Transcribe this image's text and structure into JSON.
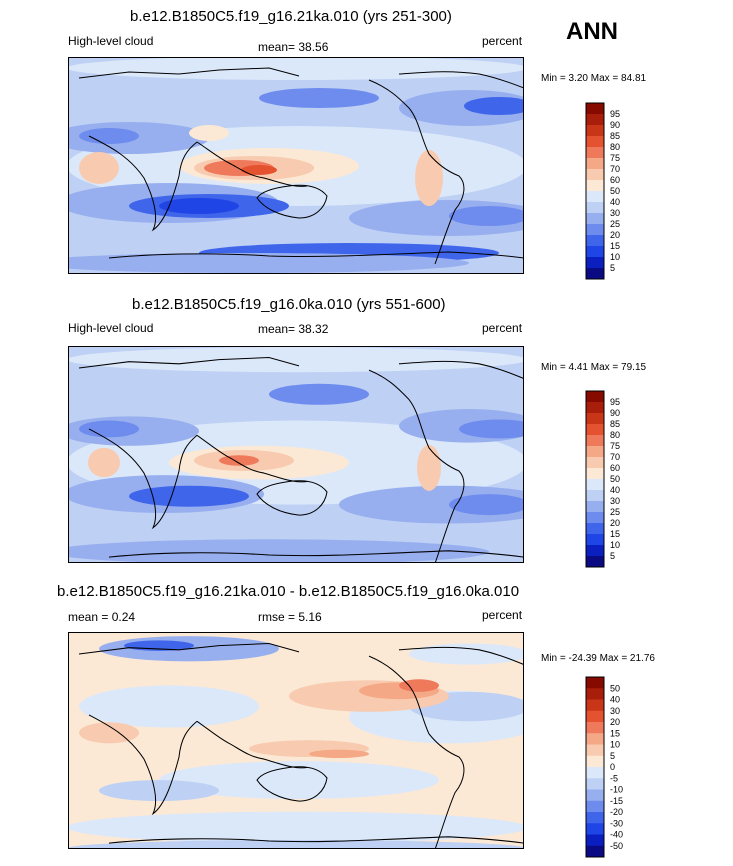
{
  "season": "ANN",
  "colors": {
    "p10": [
      "#0a0a82",
      "#0b1fc0",
      "#1f45e6",
      "#3f66ea",
      "#6e8cee",
      "#98afef",
      "#bed0f4",
      "#dbe8fa",
      "#fbe9d6",
      "#f8cbb0",
      "#f5a886",
      "#ef7a5b",
      "#e4522f",
      "#c93517",
      "#a81e0a",
      "#860a00"
    ],
    "diff": [
      "#0a0a82",
      "#0b1fc0",
      "#1f45e6",
      "#3f66ea",
      "#6e8cee",
      "#98afef",
      "#bed0f4",
      "#dbe8fa",
      "#fbe9d6",
      "#f8cbb0",
      "#f5a886",
      "#ef7a5b",
      "#e4522f",
      "#c93517",
      "#a81e0a",
      "#860a00"
    ]
  },
  "panels": [
    {
      "title": "b.e12.B1850C5.f19_g16.21ka.010 (yrs 251-300)",
      "left": "High-level cloud",
      "center": "mean=  38.56",
      "right": "percent",
      "minmax": "Min =   3.20 Max =  84.81"
    },
    {
      "title": "b.e12.B1850C5.f19_g16.0ka.010 (yrs 551-600)",
      "left": "High-level cloud",
      "center": "mean=  38.32",
      "right": "percent",
      "minmax": "Min =   4.41 Max =  79.15"
    },
    {
      "title": "b.e12.B1850C5.f19_g16.21ka.010 - b.e12.B1850C5.f19_g16.0ka.010",
      "left": "mean =   0.24",
      "center": "rmse =   5.16",
      "right": "percent",
      "minmax": "Min = -24.39 Max =  21.76"
    }
  ],
  "chart_data": [
    {
      "type": "heatmap",
      "title": "b.e12.B1850C5.f19_g16.21ka.010 (yrs 251-300)",
      "variable": "High-level cloud",
      "units": "percent",
      "mean": 38.56,
      "min": 3.2,
      "max": 84.81,
      "colorbar_levels": [
        "5",
        "10",
        "15",
        "20",
        "25",
        "30",
        "40",
        "50",
        "60",
        "70",
        "75",
        "80",
        "85",
        "90",
        "95"
      ]
    },
    {
      "type": "heatmap",
      "title": "b.e12.B1850C5.f19_g16.0ka.010 (yrs 551-600)",
      "variable": "High-level cloud",
      "units": "percent",
      "mean": 38.32,
      "min": 4.41,
      "max": 79.15,
      "colorbar_levels": [
        "5",
        "10",
        "15",
        "20",
        "25",
        "30",
        "40",
        "50",
        "60",
        "70",
        "75",
        "80",
        "85",
        "90",
        "95"
      ]
    },
    {
      "type": "heatmap",
      "title": "b.e12.B1850C5.f19_g16.21ka.010 - b.e12.B1850C5.f19_g16.0ka.010",
      "units": "percent",
      "mean": 0.24,
      "rmse": 5.16,
      "min": -24.39,
      "max": 21.76,
      "colorbar_levels": [
        "-50",
        "-40",
        "-30",
        "-20",
        "-15",
        "-10",
        "-5",
        "0",
        "5",
        "10",
        "15",
        "20",
        "30",
        "40",
        "50"
      ]
    }
  ]
}
